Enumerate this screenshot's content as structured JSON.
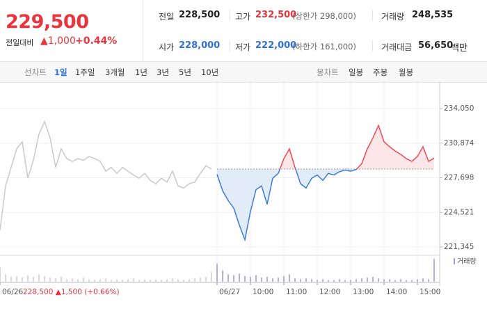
{
  "header": {
    "price": "229,500",
    "change_label": "전일대비",
    "change": "▲1,000",
    "change_pct": "+0.44%",
    "stats": [
      [
        {
          "label": "전일",
          "value": "228,500"
        },
        {
          "label": "고가",
          "value": "232,500",
          "note": "(상한가 298,000)"
        },
        {
          "label": "거래량",
          "value": "248,535"
        }
      ],
      [
        {
          "label": "시가",
          "value": "228,000"
        },
        {
          "label": "저가",
          "value": "222,000",
          "note": "(하한가 161,000)"
        },
        {
          "label": "거래대금",
          "value": "56,650",
          "unit": "백만"
        }
      ]
    ]
  },
  "tabs": {
    "line_chart": "선차트",
    "periods": [
      "1일",
      "1주일",
      "3개월",
      "1년",
      "3년",
      "5년",
      "10년"
    ],
    "candle_chart": "봉차트",
    "candle_periods": [
      "일봉",
      "주봉",
      "월봉"
    ]
  },
  "chart_data": {
    "type": "line",
    "xlim": [
      0,
      790
    ],
    "xticks": [
      {
        "value": 0,
        "label": "06/26"
      },
      {
        "value": 390,
        "label": "06/27"
      },
      {
        "value": 450,
        "label": "10:00"
      },
      {
        "value": 510,
        "label": "11:00"
      },
      {
        "value": 570,
        "label": "12:00"
      },
      {
        "value": 630,
        "label": "13:00"
      },
      {
        "value": 690,
        "label": "14:00"
      },
      {
        "value": 750,
        "label": "15:00"
      }
    ],
    "ylim": [
      220710,
      236030
    ],
    "yticks": [
      {
        "value": 234050,
        "label": "234,050"
      },
      {
        "value": 230874,
        "label": "230,874"
      },
      {
        "value": 227698,
        "label": "227,698"
      },
      {
        "value": 224521,
        "label": "224,521"
      },
      {
        "value": 221345,
        "label": "221,345"
      }
    ],
    "grid": true,
    "prev_day_note": "228,500 ▲1,500 (+0.66%)",
    "reference": 228500,
    "series": [
      {
        "color": "#c9c9c9",
        "x": [
          0,
          10,
          20,
          30,
          40,
          50,
          60,
          70,
          80,
          90,
          100,
          110,
          120,
          130,
          140,
          150,
          160,
          170,
          180,
          190,
          200,
          210,
          220,
          230,
          240,
          250,
          260,
          270,
          280,
          290,
          300,
          310,
          320,
          330,
          340,
          350,
          360,
          370,
          380
        ],
        "values": [
          222900,
          226950,
          228650,
          230350,
          231000,
          227650,
          229300,
          231700,
          232850,
          231350,
          228650,
          230350,
          229450,
          229200,
          229450,
          229300,
          229650,
          229450,
          229200,
          228300,
          228650,
          228100,
          228650,
          228300,
          227950,
          227650,
          228100,
          227450,
          227150,
          227650,
          227300,
          228300,
          226950,
          226750,
          227150,
          227300,
          228100,
          228800,
          228500
        ]
      },
      {
        "color_up": "#f04a52",
        "color_down": "#3b7bdc",
        "fill_up": "#fde6e7",
        "fill_down": "#e2ecf9",
        "x": [
          390,
          400,
          410,
          420,
          430,
          440,
          450,
          460,
          470,
          480,
          490,
          500,
          510,
          520,
          530,
          540,
          550,
          560,
          570,
          580,
          590,
          600,
          610,
          620,
          630,
          640,
          650,
          660,
          670,
          680,
          690,
          700,
          710,
          720,
          730,
          740,
          750,
          760,
          770,
          780
        ],
        "values": [
          228000,
          226500,
          225600,
          224900,
          223350,
          222000,
          224600,
          226600,
          226950,
          225250,
          227650,
          228100,
          229450,
          230350,
          228650,
          227150,
          226750,
          227650,
          227950,
          227450,
          228100,
          227950,
          228250,
          228400,
          228300,
          228450,
          229000,
          230350,
          231350,
          232500,
          231000,
          230550,
          230150,
          229850,
          229450,
          229200,
          229650,
          230550,
          229200,
          229500
        ]
      }
    ],
    "volume_name": "거래량",
    "volume_ylim": [
      0,
      30000
    ],
    "volume_series": [
      {
        "color": "#cfcfcf",
        "x": [
          0,
          10,
          20,
          30,
          40,
          50,
          60,
          70,
          80,
          90,
          100,
          110,
          120,
          130,
          140,
          150,
          160,
          170,
          180,
          190,
          200,
          210,
          220,
          230,
          240,
          250,
          260,
          270,
          280,
          290,
          300,
          310,
          320,
          330,
          340,
          350,
          360,
          370,
          380
        ],
        "values": [
          18000,
          9000,
          6000,
          7000,
          5000,
          8000,
          6000,
          9000,
          7000,
          5000,
          4000,
          6000,
          3000,
          4000,
          3000,
          5000,
          3000,
          2000,
          3000,
          4000,
          2000,
          3000,
          2000,
          3000,
          4000,
          2000,
          3000,
          2000,
          3000,
          2000,
          3000,
          4000,
          3000,
          2000,
          3000,
          4000,
          5000,
          6000,
          12000
        ]
      },
      {
        "color": "#a497d6",
        "x": [
          390,
          400,
          410,
          420,
          430,
          440,
          450,
          460,
          470,
          480,
          490,
          500,
          510,
          520,
          530,
          540,
          550,
          560,
          570,
          580,
          590,
          600,
          610,
          620,
          630,
          640,
          650,
          660,
          670,
          680,
          690,
          700,
          710,
          720,
          730,
          740,
          750,
          760,
          770,
          780
        ],
        "values": [
          22000,
          14000,
          9000,
          8000,
          10000,
          7000,
          6000,
          8000,
          5000,
          6000,
          4000,
          5000,
          7000,
          9000,
          4000,
          3000,
          4000,
          3000,
          2000,
          3000,
          2000,
          2000,
          3000,
          2000,
          2000,
          3000,
          4000,
          5000,
          6000,
          4000,
          3000,
          3000,
          2000,
          3000,
          2000,
          2000,
          3000,
          4000,
          3000,
          28000
        ]
      }
    ]
  }
}
